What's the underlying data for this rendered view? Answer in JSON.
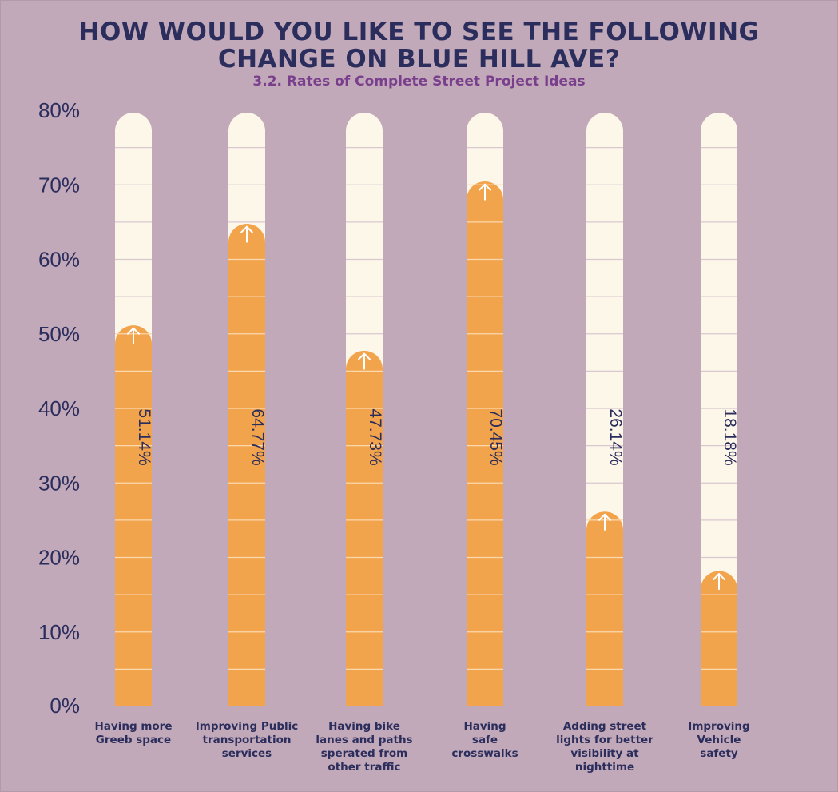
{
  "title_line1": "HOW WOULD YOU LIKE TO SEE THE FOLLOWING",
  "title_line2": "CHANGE ON BLUE HILL AVE?",
  "subtitle": "3.2. Rates of Complete Street Project Ideas",
  "colors": {
    "background": "#c1a9b9",
    "bar_fill": "#f2a44d",
    "track": "#fdf7ea",
    "text": "#2b2d5c",
    "subtitle": "#7a3f8c"
  },
  "chart_data": {
    "type": "bar",
    "categories": [
      [
        "Having more",
        "Greeb space"
      ],
      [
        "Improving Public",
        "transportation",
        "services"
      ],
      [
        "Having bike",
        "lanes and paths",
        "sperated from",
        "other traffic"
      ],
      [
        "Having",
        "safe",
        "crosswalks"
      ],
      [
        "Adding street",
        "lights for better",
        "visibility at",
        "nighttime"
      ],
      [
        "Improving",
        "Vehicle",
        "safety"
      ]
    ],
    "values": [
      51.14,
      64.77,
      47.73,
      70.45,
      26.14,
      18.18
    ],
    "value_labels": [
      "51.14%",
      "64.77%",
      "47.73%",
      "70.45%",
      "26.14%",
      "18.18%"
    ],
    "yticks": [
      "0%",
      "10%",
      "20%",
      "30%",
      "40%",
      "50%",
      "60%",
      "70%",
      "80%"
    ],
    "ylim": [
      0,
      80
    ],
    "grid": true
  }
}
